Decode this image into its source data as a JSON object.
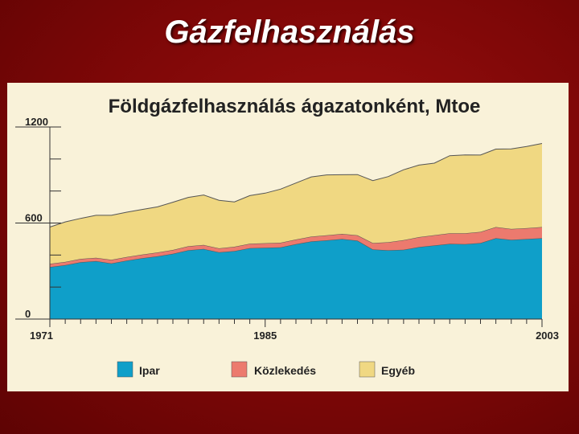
{
  "slide": {
    "title": "Gázfelhasználás"
  },
  "colors": {
    "ipar": "#0f9fc9",
    "kozlekedes": "#ec7a6e",
    "egyeb": "#f0d882",
    "panel": "#f9f2d9",
    "slide_background": "#8b0a0a"
  },
  "chart_data": {
    "type": "area",
    "stacked": true,
    "title": "Földgázfelhasználás ágazatonként, Mtoe",
    "xlabel": "",
    "ylabel": "",
    "x": [
      1971,
      1972,
      1973,
      1974,
      1975,
      1976,
      1977,
      1978,
      1979,
      1980,
      1981,
      1982,
      1983,
      1984,
      1985,
      1986,
      1987,
      1988,
      1989,
      1990,
      1991,
      1992,
      1993,
      1994,
      1995,
      1996,
      1997,
      1998,
      1999,
      2000,
      2001,
      2002,
      2003
    ],
    "x_ticks": [
      1971,
      1985,
      2003
    ],
    "x_tick_labels": [
      "1971",
      "1985",
      "2003"
    ],
    "y_ticks": [
      0,
      600,
      1200
    ],
    "y_tick_labels": [
      "0",
      "600",
      "1200"
    ],
    "ylim": [
      0,
      1200
    ],
    "xlim": [
      1971,
      2003
    ],
    "grid": false,
    "legend": "bottom",
    "series": [
      {
        "name": "Ipar",
        "color": "#0f9fc9",
        "values": [
          325,
          337,
          355,
          362,
          348,
          365,
          380,
          392,
          408,
          430,
          438,
          417,
          425,
          443,
          446,
          448,
          468,
          485,
          492,
          500,
          490,
          435,
          430,
          433,
          450,
          460,
          470,
          468,
          475,
          505,
          495,
          500,
          505
        ]
      },
      {
        "name": "Közlekedés",
        "color": "#ec7a6e",
        "values": [
          20,
          20,
          21,
          21,
          22,
          23,
          23,
          24,
          24,
          25,
          25,
          25,
          27,
          28,
          28,
          29,
          29,
          30,
          31,
          32,
          33,
          40,
          50,
          60,
          62,
          64,
          66,
          68,
          70,
          70,
          68,
          68,
          70
        ]
      },
      {
        "name": "Egyéb",
        "color": "#f0d882",
        "values": [
          230,
          250,
          253,
          265,
          278,
          280,
          282,
          285,
          298,
          305,
          312,
          300,
          280,
          300,
          313,
          335,
          353,
          373,
          378,
          370,
          380,
          390,
          410,
          440,
          450,
          450,
          485,
          490,
          480,
          487,
          500,
          510,
          522
        ]
      }
    ]
  },
  "legend": {
    "ipar_label": "Ipar",
    "kozlekedes_label": "Közlekedés",
    "egyeb_label": "Egyéb"
  }
}
